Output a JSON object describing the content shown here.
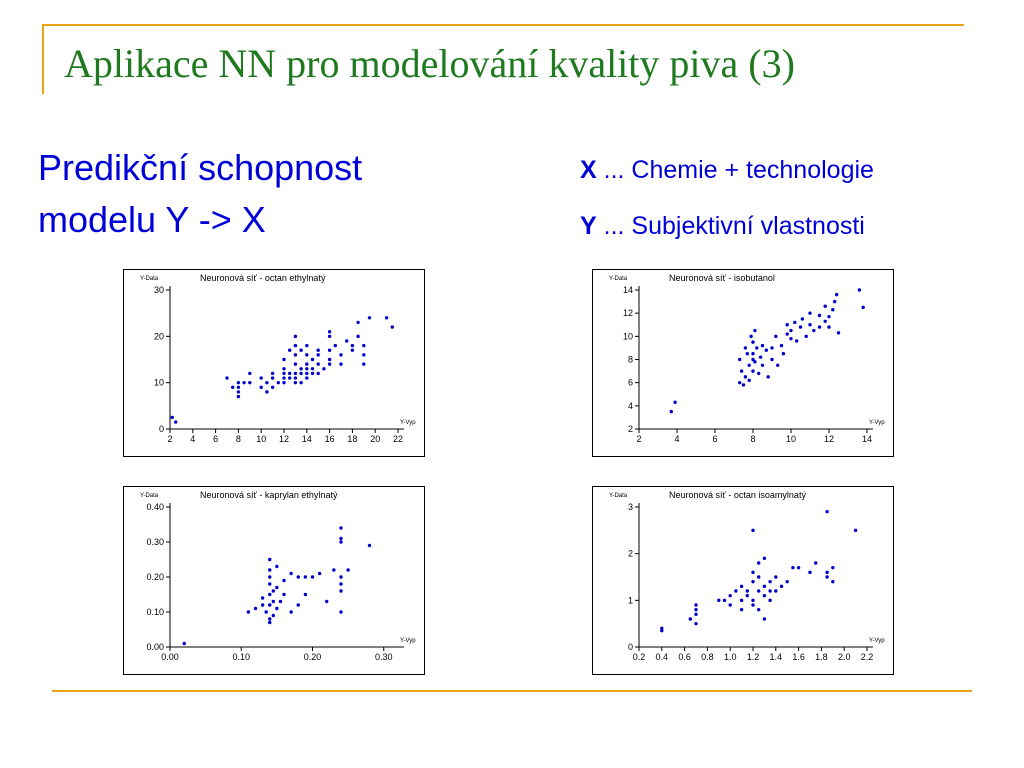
{
  "slide": {
    "title": "Aplikace NN pro modelování kvality piva (3)",
    "subtitle_line1": "Predikční schopnost",
    "subtitle_line2": "modelu Y -> X",
    "legend_x_key": "X",
    "legend_x_text": " ... Chemie + technologie",
    "legend_y_key": "Y",
    "legend_y_text": " ... Subjektivní vlastnosti"
  },
  "colors": {
    "title": "#1f7a1f",
    "text": "#0000d8",
    "rule": "#e8a317",
    "points": "#0000cc"
  },
  "chart_data": [
    {
      "type": "scatter",
      "title": "Neuronová síť - octan ethylnatý",
      "xlabel": "Y-Vyp",
      "ylabel": "Y-Data",
      "xlim": [
        2,
        22
      ],
      "ylim": [
        0,
        30
      ],
      "xticks": [
        2,
        4,
        6,
        8,
        10,
        12,
        14,
        16,
        18,
        20,
        22
      ],
      "xtick_labels": [
        "2",
        "4",
        "6",
        "8",
        "10",
        "12",
        "14",
        "16",
        "18",
        "20",
        "22"
      ],
      "yticks": [
        0,
        10,
        20,
        30
      ],
      "ytick_labels": [
        "0",
        "10",
        "20",
        "30"
      ],
      "points": [
        [
          2.2,
          2.5
        ],
        [
          2.5,
          1.5
        ],
        [
          7,
          11
        ],
        [
          7.5,
          9
        ],
        [
          8,
          10
        ],
        [
          8,
          8
        ],
        [
          8,
          7
        ],
        [
          8,
          9
        ],
        [
          8.5,
          10
        ],
        [
          9,
          12
        ],
        [
          9,
          10
        ],
        [
          10,
          11
        ],
        [
          10,
          9
        ],
        [
          10.5,
          10
        ],
        [
          10.5,
          8
        ],
        [
          11,
          12
        ],
        [
          11,
          9
        ],
        [
          11,
          11
        ],
        [
          11.5,
          10
        ],
        [
          12,
          12
        ],
        [
          12,
          11
        ],
        [
          12,
          13
        ],
        [
          12,
          10
        ],
        [
          12,
          15
        ],
        [
          12.5,
          12
        ],
        [
          12.5,
          17
        ],
        [
          12.5,
          11
        ],
        [
          13,
          14
        ],
        [
          13,
          12
        ],
        [
          13,
          10
        ],
        [
          13,
          16
        ],
        [
          13,
          18
        ],
        [
          13,
          20
        ],
        [
          13,
          11
        ],
        [
          13.5,
          13
        ],
        [
          13.5,
          12
        ],
        [
          13.5,
          10
        ],
        [
          13.5,
          17
        ],
        [
          14,
          14
        ],
        [
          14,
          12
        ],
        [
          14,
          16
        ],
        [
          14,
          11
        ],
        [
          14,
          13
        ],
        [
          14,
          18
        ],
        [
          14.5,
          15
        ],
        [
          14.5,
          13
        ],
        [
          14.5,
          12
        ],
        [
          15,
          16
        ],
        [
          15,
          14
        ],
        [
          15,
          17
        ],
        [
          15,
          12
        ],
        [
          15.5,
          13
        ],
        [
          16,
          15
        ],
        [
          16,
          17
        ],
        [
          16,
          14
        ],
        [
          16,
          20
        ],
        [
          16,
          21
        ],
        [
          16.5,
          18
        ],
        [
          17,
          16
        ],
        [
          17,
          14
        ],
        [
          17.5,
          19
        ],
        [
          18,
          18
        ],
        [
          18,
          17
        ],
        [
          18.5,
          23
        ],
        [
          18.5,
          20
        ],
        [
          19,
          16
        ],
        [
          19,
          18
        ],
        [
          19,
          14
        ],
        [
          19.5,
          24
        ],
        [
          21,
          24
        ],
        [
          21.5,
          22
        ]
      ]
    },
    {
      "type": "scatter",
      "title": "Neuronová síť - isobutanol",
      "xlabel": "Y-Vyp",
      "ylabel": "Y-Data",
      "xlim": [
        2,
        14
      ],
      "ylim": [
        2,
        14
      ],
      "xticks": [
        2,
        4,
        6,
        8,
        10,
        12,
        14
      ],
      "xtick_labels": [
        "2",
        "4",
        "6",
        "8",
        "10",
        "12",
        "14"
      ],
      "yticks": [
        2,
        4,
        6,
        8,
        10,
        12,
        14
      ],
      "ytick_labels": [
        "2",
        "4",
        "6",
        "8",
        "10",
        "12",
        "14"
      ],
      "points": [
        [
          3.7,
          3.5
        ],
        [
          3.9,
          4.3
        ],
        [
          7.3,
          6
        ],
        [
          7.3,
          8
        ],
        [
          7.4,
          7
        ],
        [
          7.5,
          5.8
        ],
        [
          7.6,
          9
        ],
        [
          7.6,
          6.5
        ],
        [
          7.7,
          8.5
        ],
        [
          7.8,
          7.5
        ],
        [
          7.8,
          6.2
        ],
        [
          7.9,
          10
        ],
        [
          8,
          8
        ],
        [
          8,
          9.5
        ],
        [
          8,
          7
        ],
        [
          8,
          8.5
        ],
        [
          8.1,
          10.5
        ],
        [
          8.1,
          7.8
        ],
        [
          8.2,
          9
        ],
        [
          8.3,
          6.8
        ],
        [
          8.4,
          8.2
        ],
        [
          8.5,
          7.5
        ],
        [
          8.5,
          9.2
        ],
        [
          8.7,
          8.8
        ],
        [
          8.8,
          6.5
        ],
        [
          9,
          9
        ],
        [
          9,
          8
        ],
        [
          9.2,
          10
        ],
        [
          9.3,
          7.5
        ],
        [
          9.5,
          9.2
        ],
        [
          9.6,
          8.5
        ],
        [
          9.8,
          11
        ],
        [
          9.8,
          10.2
        ],
        [
          10,
          9.8
        ],
        [
          10,
          10.5
        ],
        [
          10.2,
          11.2
        ],
        [
          10.3,
          9.6
        ],
        [
          10.5,
          10.8
        ],
        [
          10.6,
          11.5
        ],
        [
          10.8,
          10
        ],
        [
          11,
          11
        ],
        [
          11,
          12
        ],
        [
          11.2,
          10.5
        ],
        [
          11.5,
          11.8
        ],
        [
          11.5,
          10.8
        ],
        [
          11.8,
          12.6
        ],
        [
          11.8,
          11.3
        ],
        [
          12,
          11.7
        ],
        [
          12,
          10.8
        ],
        [
          12.2,
          12.3
        ],
        [
          12.3,
          13
        ],
        [
          12.4,
          13.6
        ],
        [
          12.5,
          10.3
        ],
        [
          13.6,
          14
        ],
        [
          13.8,
          12.5
        ]
      ]
    },
    {
      "type": "scatter",
      "title": "Neuronová síť - kaprylan ethylnatý",
      "xlabel": "Y-Vyp",
      "ylabel": "Y-Data",
      "xlim": [
        0,
        0.32
      ],
      "ylim": [
        0,
        0.4
      ],
      "xticks": [
        0,
        0.1,
        0.2,
        0.3
      ],
      "xtick_labels": [
        "0.00",
        "0.10",
        "0.20",
        "0.30"
      ],
      "yticks": [
        0,
        0.1,
        0.2,
        0.3,
        0.4
      ],
      "ytick_labels": [
        "0.00",
        "0.10",
        "0.20",
        "0.30",
        "0.40"
      ],
      "points": [
        [
          0.02,
          0.01
        ],
        [
          0.11,
          0.1
        ],
        [
          0.12,
          0.11
        ],
        [
          0.13,
          0.12
        ],
        [
          0.13,
          0.14
        ],
        [
          0.135,
          0.1
        ],
        [
          0.14,
          0.08
        ],
        [
          0.14,
          0.12
        ],
        [
          0.14,
          0.15
        ],
        [
          0.14,
          0.18
        ],
        [
          0.14,
          0.2
        ],
        [
          0.14,
          0.22
        ],
        [
          0.14,
          0.25
        ],
        [
          0.14,
          0.07
        ],
        [
          0.145,
          0.16
        ],
        [
          0.145,
          0.13
        ],
        [
          0.145,
          0.09
        ],
        [
          0.15,
          0.17
        ],
        [
          0.15,
          0.11
        ],
        [
          0.15,
          0.23
        ],
        [
          0.155,
          0.13
        ],
        [
          0.16,
          0.19
        ],
        [
          0.16,
          0.15
        ],
        [
          0.17,
          0.1
        ],
        [
          0.17,
          0.21
        ],
        [
          0.18,
          0.12
        ],
        [
          0.18,
          0.2
        ],
        [
          0.19,
          0.15
        ],
        [
          0.19,
          0.2
        ],
        [
          0.2,
          0.2
        ],
        [
          0.21,
          0.21
        ],
        [
          0.22,
          0.13
        ],
        [
          0.23,
          0.22
        ],
        [
          0.24,
          0.18
        ],
        [
          0.24,
          0.16
        ],
        [
          0.24,
          0.2
        ],
        [
          0.24,
          0.3
        ],
        [
          0.24,
          0.31
        ],
        [
          0.24,
          0.34
        ],
        [
          0.24,
          0.1
        ],
        [
          0.25,
          0.22
        ],
        [
          0.28,
          0.29
        ]
      ]
    },
    {
      "type": "scatter",
      "title": "Neuronová síť - octan isoamylnatý",
      "xlabel": "Y-Vyp",
      "ylabel": "Y-Data",
      "xlim": [
        0.2,
        2.2
      ],
      "ylim": [
        0,
        3
      ],
      "xticks": [
        0.2,
        0.4,
        0.6,
        0.8,
        1.0,
        1.2,
        1.4,
        1.6,
        1.8,
        2.0,
        2.2
      ],
      "xtick_labels": [
        "0.2",
        "0.4",
        "0.6",
        "0.8",
        "1.0",
        "1.2",
        "1.4",
        "1.6",
        "1.8",
        "2.0",
        "2.2"
      ],
      "yticks": [
        0,
        1,
        2,
        3
      ],
      "ytick_labels": [
        "0",
        "1",
        "2",
        "3"
      ],
      "points": [
        [
          0.4,
          0.35
        ],
        [
          0.4,
          0.4
        ],
        [
          0.65,
          0.6
        ],
        [
          0.7,
          0.5
        ],
        [
          0.7,
          0.7
        ],
        [
          0.7,
          0.8
        ],
        [
          0.7,
          0.9
        ],
        [
          0.9,
          1
        ],
        [
          0.95,
          1
        ],
        [
          1,
          0.9
        ],
        [
          1,
          1.1
        ],
        [
          1.05,
          1.2
        ],
        [
          1.1,
          1
        ],
        [
          1.1,
          1.3
        ],
        [
          1.1,
          0.8
        ],
        [
          1.15,
          1.1
        ],
        [
          1.15,
          1.2
        ],
        [
          1.2,
          0.9
        ],
        [
          1.2,
          1.4
        ],
        [
          1.2,
          1.6
        ],
        [
          1.2,
          1.0
        ],
        [
          1.2,
          2.5
        ],
        [
          1.25,
          1.2
        ],
        [
          1.25,
          1.8
        ],
        [
          1.25,
          0.8
        ],
        [
          1.25,
          1.5
        ],
        [
          1.3,
          1.1
        ],
        [
          1.3,
          1.3
        ],
        [
          1.3,
          1.9
        ],
        [
          1.3,
          0.6
        ],
        [
          1.35,
          1.2
        ],
        [
          1.35,
          1.0
        ],
        [
          1.35,
          1.4
        ],
        [
          1.4,
          1.5
        ],
        [
          1.4,
          1.2
        ],
        [
          1.45,
          1.3
        ],
        [
          1.5,
          1.4
        ],
        [
          1.55,
          1.7
        ],
        [
          1.6,
          1.7
        ],
        [
          1.7,
          1.6
        ],
        [
          1.75,
          1.8
        ],
        [
          1.85,
          1.5
        ],
        [
          1.85,
          1.6
        ],
        [
          1.85,
          2.9
        ],
        [
          1.9,
          1.4
        ],
        [
          1.9,
          1.7
        ],
        [
          2.1,
          2.5
        ]
      ]
    }
  ]
}
